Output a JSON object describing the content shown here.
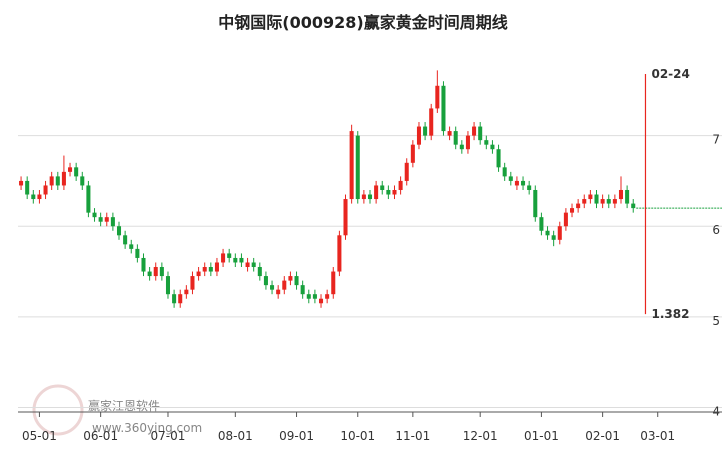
{
  "chart_data": {
    "type": "candlestick",
    "title": "中钢国际(000928)赢家黄金时间周期线",
    "x": [
      0,
      1,
      2,
      3,
      4,
      5,
      6,
      7,
      8,
      9,
      10,
      11,
      12,
      13,
      14,
      15,
      16,
      17,
      18,
      19,
      20,
      21,
      22,
      23,
      24,
      25,
      26,
      27,
      28,
      29,
      30,
      31,
      32,
      33,
      34,
      35,
      36,
      37,
      38,
      39,
      40,
      41,
      42,
      43,
      44,
      45,
      46,
      47,
      48,
      49,
      50,
      51,
      52,
      53,
      54,
      55,
      56,
      57,
      58,
      59,
      60,
      61,
      62,
      63,
      64,
      65,
      66,
      67,
      68,
      69,
      70,
      71,
      72,
      73,
      74,
      75,
      76,
      77,
      78,
      79,
      80,
      81,
      82,
      83,
      84,
      85,
      86,
      87,
      88,
      89,
      90,
      91,
      92,
      93,
      94,
      95,
      96,
      97,
      98,
      99,
      100
    ],
    "open": [
      6.45,
      6.5,
      6.35,
      6.3,
      6.35,
      6.45,
      6.55,
      6.45,
      6.6,
      6.65,
      6.55,
      6.45,
      6.15,
      6.1,
      6.05,
      6.1,
      6.0,
      5.9,
      5.8,
      5.75,
      5.65,
      5.5,
      5.45,
      5.55,
      5.45,
      5.25,
      5.15,
      5.25,
      5.3,
      5.45,
      5.5,
      5.55,
      5.5,
      5.6,
      5.7,
      5.65,
      5.65,
      5.55,
      5.6,
      5.55,
      5.45,
      5.35,
      5.25,
      5.3,
      5.4,
      5.45,
      5.35,
      5.25,
      5.25,
      5.15,
      5.2,
      5.25,
      5.5,
      5.9,
      6.3,
      7.0,
      6.3,
      6.35,
      6.3,
      6.45,
      6.4,
      6.35,
      6.4,
      6.5,
      6.7,
      6.9,
      7.1,
      7.0,
      7.3,
      7.55,
      7.0,
      7.05,
      6.9,
      6.85,
      7.0,
      7.1,
      6.95,
      6.9,
      6.85,
      6.65,
      6.55,
      6.45,
      6.5,
      6.45,
      6.4,
      6.1,
      5.95,
      5.9,
      5.85,
      6.0,
      6.15,
      6.2,
      6.25,
      6.3,
      6.35,
      6.25,
      6.3,
      6.25,
      6.3,
      6.4,
      6.25
    ],
    "high": [
      6.55,
      6.55,
      6.4,
      6.4,
      6.5,
      6.6,
      6.6,
      6.78,
      6.7,
      6.7,
      6.6,
      6.5,
      6.2,
      6.15,
      6.15,
      6.15,
      6.05,
      5.95,
      5.85,
      5.8,
      5.7,
      5.55,
      5.6,
      5.6,
      5.5,
      5.3,
      5.3,
      5.35,
      5.5,
      5.55,
      5.6,
      5.6,
      5.65,
      5.75,
      5.75,
      5.7,
      5.7,
      5.65,
      5.65,
      5.6,
      5.5,
      5.4,
      5.35,
      5.45,
      5.5,
      5.5,
      5.4,
      5.3,
      5.3,
      5.25,
      5.3,
      5.55,
      5.95,
      6.35,
      7.12,
      7.05,
      6.4,
      6.4,
      6.5,
      6.5,
      6.45,
      6.45,
      6.55,
      6.75,
      6.95,
      7.15,
      7.15,
      7.35,
      7.72,
      7.6,
      7.1,
      7.1,
      6.95,
      7.05,
      7.15,
      7.15,
      7.0,
      6.95,
      6.9,
      6.7,
      6.6,
      6.55,
      6.55,
      6.5,
      6.45,
      6.15,
      6.0,
      5.95,
      6.05,
      6.2,
      6.25,
      6.3,
      6.35,
      6.4,
      6.4,
      6.35,
      6.35,
      6.35,
      6.55,
      6.45,
      6.3
    ],
    "low": [
      6.4,
      6.3,
      6.25,
      6.25,
      6.3,
      6.4,
      6.4,
      6.4,
      6.55,
      6.5,
      6.4,
      6.1,
      6.05,
      6.0,
      6.0,
      5.95,
      5.85,
      5.75,
      5.7,
      5.6,
      5.45,
      5.4,
      5.4,
      5.4,
      5.2,
      5.1,
      5.1,
      5.2,
      5.25,
      5.4,
      5.45,
      5.45,
      5.45,
      5.55,
      5.6,
      5.55,
      5.55,
      5.5,
      5.5,
      5.4,
      5.3,
      5.25,
      5.2,
      5.25,
      5.35,
      5.3,
      5.2,
      5.15,
      5.15,
      5.1,
      5.15,
      5.2,
      5.45,
      5.85,
      6.25,
      6.25,
      6.25,
      6.25,
      6.25,
      6.35,
      6.3,
      6.3,
      6.35,
      6.45,
      6.65,
      6.85,
      6.95,
      6.95,
      7.25,
      7.0,
      6.95,
      6.85,
      6.8,
      6.8,
      6.95,
      6.9,
      6.85,
      6.8,
      6.6,
      6.5,
      6.45,
      6.4,
      6.4,
      6.35,
      6.05,
      5.9,
      5.85,
      5.78,
      5.8,
      5.95,
      6.1,
      6.15,
      6.2,
      6.25,
      6.2,
      6.2,
      6.2,
      6.2,
      6.25,
      6.2,
      6.15
    ],
    "close": [
      6.5,
      6.35,
      6.3,
      6.35,
      6.45,
      6.55,
      6.45,
      6.6,
      6.65,
      6.55,
      6.45,
      6.15,
      6.1,
      6.05,
      6.1,
      6.0,
      5.9,
      5.8,
      5.75,
      5.65,
      5.5,
      5.45,
      5.55,
      5.45,
      5.25,
      5.15,
      5.25,
      5.3,
      5.45,
      5.5,
      5.55,
      5.5,
      5.6,
      5.7,
      5.65,
      5.6,
      5.6,
      5.6,
      5.55,
      5.45,
      5.35,
      5.3,
      5.3,
      5.4,
      5.45,
      5.35,
      5.25,
      5.2,
      5.2,
      5.2,
      5.25,
      5.5,
      5.9,
      6.3,
      7.05,
      6.3,
      6.35,
      6.3,
      6.45,
      6.4,
      6.35,
      6.4,
      6.5,
      6.7,
      6.9,
      7.1,
      7.0,
      7.3,
      7.55,
      7.05,
      7.05,
      6.9,
      6.85,
      7.0,
      7.1,
      6.95,
      6.9,
      6.85,
      6.65,
      6.55,
      6.5,
      6.5,
      6.45,
      6.4,
      6.1,
      5.95,
      5.9,
      5.85,
      6.0,
      6.15,
      6.2,
      6.25,
      6.3,
      6.35,
      6.25,
      6.3,
      6.25,
      6.3,
      6.4,
      6.25,
      6.2
    ],
    "up_color": "#e8251f",
    "down_color": "#17a03c",
    "xlim": [
      -0.5,
      114.5
    ],
    "xticks": [
      {
        "value": 3,
        "label": "05-01"
      },
      {
        "value": 13,
        "label": "06-01"
      },
      {
        "value": 24,
        "label": "07-01"
      },
      {
        "value": 35,
        "label": "08-01"
      },
      {
        "value": 45,
        "label": "09-01"
      },
      {
        "value": 55,
        "label": "10-01"
      },
      {
        "value": 64,
        "label": "11-01"
      },
      {
        "value": 75,
        "label": "12-01"
      },
      {
        "value": 85,
        "label": "01-01"
      },
      {
        "value": 95,
        "label": "02-01"
      },
      {
        "value": 104,
        "label": "03-01"
      }
    ],
    "ylim": [
      3.95,
      8.0
    ],
    "yticks": [
      4,
      5,
      6,
      7
    ],
    "grid": true,
    "marker": {
      "x": 102,
      "top": 7.68,
      "bottom": 5.03,
      "top_label": "02-24",
      "bottom_label": "1.382",
      "color": "#e8251f"
    },
    "watermark": {
      "name": "赢家江恩软件",
      "url": "www.360ying.com"
    }
  }
}
